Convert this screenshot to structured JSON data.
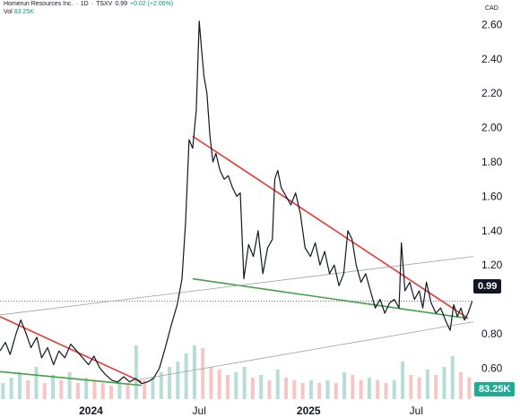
{
  "header": {
    "name": "Homerun Resources Inc.",
    "interval": "1D",
    "exchange": "TSXV",
    "price": "0.99",
    "change": "+0.02 (+2.06%)",
    "vol_label": "Vol",
    "vol_value": "83.25K",
    "sep": "·"
  },
  "currency": "CAD",
  "last_price_label": "0.99",
  "last_volume_label": "83.25K",
  "colors": {
    "price_line": "#131722",
    "resistance": "#e53935",
    "support": "#43a047",
    "channel": "#9e9e9e",
    "volume_up": "#a5d6c9",
    "volume_down": "#f4b6b6",
    "volume_tag": "#22ab94"
  },
  "chart_data": {
    "type": "line",
    "y_axis": {
      "range": [
        0.42,
        2.67
      ],
      "ticks": [
        "2.60",
        "2.40",
        "2.20",
        "2.00",
        "1.80",
        "1.60",
        "1.40",
        "1.20",
        "0.80",
        "0.60"
      ],
      "tick_values": [
        2.6,
        2.4,
        2.2,
        2.0,
        1.8,
        1.6,
        1.4,
        1.2,
        0.8,
        0.6
      ],
      "position": "right"
    },
    "x_axis": {
      "range": [
        "2023-08-01",
        "2025-10-05"
      ],
      "ticks": [
        "2024",
        "Jul",
        "2025",
        "Jul"
      ],
      "tick_dates": [
        "2024-01-01",
        "2024-07-01",
        "2025-01-01",
        "2025-07-01"
      ]
    },
    "grid": false,
    "series": [
      {
        "points": [
          [
            "2023-08-01",
            0.7
          ],
          [
            "2023-08-10",
            0.75
          ],
          [
            "2023-08-18",
            0.68
          ],
          [
            "2023-08-28",
            0.8
          ],
          [
            "2023-09-05",
            0.88
          ],
          [
            "2023-09-14",
            0.8
          ],
          [
            "2023-09-22",
            0.72
          ],
          [
            "2023-10-02",
            0.78
          ],
          [
            "2023-10-10",
            0.66
          ],
          [
            "2023-10-20",
            0.72
          ],
          [
            "2023-10-30",
            0.62
          ],
          [
            "2023-11-08",
            0.7
          ],
          [
            "2023-11-18",
            0.66
          ],
          [
            "2023-11-28",
            0.74
          ],
          [
            "2023-12-08",
            0.7
          ],
          [
            "2023-12-18",
            0.66
          ],
          [
            "2023-12-28",
            0.62
          ],
          [
            "2024-01-06",
            0.67
          ],
          [
            "2024-01-16",
            0.6
          ],
          [
            "2024-01-26",
            0.56
          ],
          [
            "2024-02-05",
            0.53
          ],
          [
            "2024-02-15",
            0.52
          ],
          [
            "2024-02-25",
            0.55
          ],
          [
            "2024-03-06",
            0.52
          ],
          [
            "2024-03-16",
            0.54
          ],
          [
            "2024-03-26",
            0.51
          ],
          [
            "2024-04-05",
            0.52
          ],
          [
            "2024-04-15",
            0.54
          ],
          [
            "2024-04-25",
            0.6
          ],
          [
            "2024-05-05",
            0.72
          ],
          [
            "2024-05-15",
            0.85
          ],
          [
            "2024-05-25",
            0.97
          ],
          [
            "2024-06-02",
            1.12
          ],
          [
            "2024-06-08",
            1.45
          ],
          [
            "2024-06-14",
            1.93
          ],
          [
            "2024-06-20",
            1.88
          ],
          [
            "2024-06-26",
            2.1
          ],
          [
            "2024-07-01",
            2.62
          ],
          [
            "2024-07-05",
            2.45
          ],
          [
            "2024-07-09",
            2.3
          ],
          [
            "2024-07-14",
            2.2
          ],
          [
            "2024-07-19",
            1.95
          ],
          [
            "2024-07-24",
            1.8
          ],
          [
            "2024-07-29",
            1.85
          ],
          [
            "2024-08-05",
            1.75
          ],
          [
            "2024-08-12",
            1.7
          ],
          [
            "2024-08-19",
            1.72
          ],
          [
            "2024-08-26",
            1.65
          ],
          [
            "2024-09-02",
            1.6
          ],
          [
            "2024-09-08",
            1.62
          ],
          [
            "2024-09-14",
            1.12
          ],
          [
            "2024-09-22",
            1.32
          ],
          [
            "2024-09-30",
            1.25
          ],
          [
            "2024-10-08",
            1.4
          ],
          [
            "2024-10-16",
            1.15
          ],
          [
            "2024-10-24",
            1.3
          ],
          [
            "2024-11-01",
            1.35
          ],
          [
            "2024-11-05",
            1.7
          ],
          [
            "2024-11-10",
            1.75
          ],
          [
            "2024-11-16",
            1.65
          ],
          [
            "2024-11-24",
            1.6
          ],
          [
            "2024-12-02",
            1.55
          ],
          [
            "2024-12-10",
            1.62
          ],
          [
            "2024-12-18",
            1.5
          ],
          [
            "2024-12-26",
            1.3
          ],
          [
            "2025-01-04",
            1.25
          ],
          [
            "2025-01-12",
            1.33
          ],
          [
            "2025-01-20",
            1.2
          ],
          [
            "2025-01-28",
            1.28
          ],
          [
            "2025-02-05",
            1.15
          ],
          [
            "2025-02-13",
            1.2
          ],
          [
            "2025-02-21",
            1.08
          ],
          [
            "2025-03-01",
            1.15
          ],
          [
            "2025-03-08",
            1.4
          ],
          [
            "2025-03-15",
            1.35
          ],
          [
            "2025-03-22",
            1.2
          ],
          [
            "2025-03-30",
            1.1
          ],
          [
            "2025-04-07",
            1.15
          ],
          [
            "2025-04-15",
            1.05
          ],
          [
            "2025-04-23",
            0.95
          ],
          [
            "2025-05-01",
            1.0
          ],
          [
            "2025-05-09",
            0.92
          ],
          [
            "2025-05-17",
            0.98
          ],
          [
            "2025-05-25",
            1.0
          ],
          [
            "2025-06-02",
            0.95
          ],
          [
            "2025-06-06",
            1.33
          ],
          [
            "2025-06-12",
            1.05
          ],
          [
            "2025-06-20",
            1.1
          ],
          [
            "2025-06-28",
            1.0
          ],
          [
            "2025-07-06",
            1.05
          ],
          [
            "2025-07-12",
            0.95
          ],
          [
            "2025-07-18",
            1.1
          ],
          [
            "2025-07-26",
            0.98
          ],
          [
            "2025-08-03",
            0.92
          ],
          [
            "2025-08-11",
            0.95
          ],
          [
            "2025-08-19",
            0.88
          ],
          [
            "2025-08-27",
            0.82
          ],
          [
            "2025-09-02",
            0.97
          ],
          [
            "2025-09-08",
            0.9
          ],
          [
            "2025-09-14",
            0.95
          ],
          [
            "2025-09-20",
            0.88
          ],
          [
            "2025-09-26",
            0.92
          ],
          [
            "2025-10-03",
            0.99
          ]
        ]
      }
    ],
    "trendlines": [
      {
        "kind": "resistance",
        "from": [
          "2023-08-01",
          0.9
        ],
        "to": [
          "2024-03-26",
          0.52
        ]
      },
      {
        "kind": "support",
        "from": [
          "2023-08-01",
          0.58
        ],
        "to": [
          "2024-03-26",
          0.5
        ]
      },
      {
        "kind": "resistance",
        "from": [
          "2024-06-20",
          1.95
        ],
        "to": [
          "2025-09-26",
          0.89
        ]
      },
      {
        "kind": "support",
        "from": [
          "2024-06-20",
          1.12
        ],
        "to": [
          "2025-09-26",
          0.89
        ]
      },
      {
        "kind": "channel",
        "from": [
          "2023-08-01",
          0.91
        ],
        "to": [
          "2025-10-05",
          1.25
        ]
      },
      {
        "kind": "channel",
        "from": [
          "2024-03-16",
          0.53
        ],
        "to": [
          "2025-10-05",
          0.87
        ]
      }
    ],
    "volume": {
      "last": "83.25K",
      "bars": [
        [
          "2023-08-06",
          0.3
        ],
        [
          "2023-08-20",
          0.4
        ],
        [
          "2023-09-03",
          0.5
        ],
        [
          "2023-09-17",
          0.35
        ],
        [
          "2023-10-01",
          0.6
        ],
        [
          "2023-10-15",
          0.3
        ],
        [
          "2023-10-29",
          0.45
        ],
        [
          "2023-11-12",
          0.35
        ],
        [
          "2023-11-26",
          0.5
        ],
        [
          "2023-12-10",
          0.3
        ],
        [
          "2023-12-24",
          0.4
        ],
        [
          "2024-01-07",
          0.35
        ],
        [
          "2024-01-21",
          0.3
        ],
        [
          "2024-02-04",
          0.25
        ],
        [
          "2024-02-18",
          0.35
        ],
        [
          "2024-03-03",
          0.3
        ],
        [
          "2024-03-17",
          1.0
        ],
        [
          "2024-03-31",
          0.35
        ],
        [
          "2024-04-14",
          0.4
        ],
        [
          "2024-04-28",
          0.5
        ],
        [
          "2024-05-12",
          0.6
        ],
        [
          "2024-05-26",
          0.7
        ],
        [
          "2024-06-09",
          0.85
        ],
        [
          "2024-06-23",
          1.0
        ],
        [
          "2024-07-07",
          0.95
        ],
        [
          "2024-07-21",
          0.6
        ],
        [
          "2024-08-04",
          0.55
        ],
        [
          "2024-08-18",
          0.45
        ],
        [
          "2024-09-01",
          0.5
        ],
        [
          "2024-09-15",
          0.6
        ],
        [
          "2024-09-29",
          0.4
        ],
        [
          "2024-10-13",
          0.45
        ],
        [
          "2024-10-27",
          0.35
        ],
        [
          "2024-11-10",
          0.55
        ],
        [
          "2024-11-24",
          0.4
        ],
        [
          "2024-12-08",
          0.35
        ],
        [
          "2024-12-22",
          0.3
        ],
        [
          "2025-01-05",
          0.35
        ],
        [
          "2025-01-19",
          0.3
        ],
        [
          "2025-02-02",
          0.35
        ],
        [
          "2025-02-16",
          0.3
        ],
        [
          "2025-03-02",
          0.5
        ],
        [
          "2025-03-16",
          0.45
        ],
        [
          "2025-03-30",
          0.35
        ],
        [
          "2025-04-13",
          0.4
        ],
        [
          "2025-04-27",
          0.35
        ],
        [
          "2025-05-11",
          0.3
        ],
        [
          "2025-05-25",
          0.35
        ],
        [
          "2025-06-08",
          0.7
        ],
        [
          "2025-06-22",
          0.45
        ],
        [
          "2025-07-06",
          0.4
        ],
        [
          "2025-07-20",
          0.55
        ],
        [
          "2025-08-03",
          0.45
        ],
        [
          "2025-08-17",
          0.6
        ],
        [
          "2025-08-31",
          0.8
        ],
        [
          "2025-09-14",
          0.5
        ],
        [
          "2025-09-28",
          0.4
        ]
      ]
    }
  }
}
